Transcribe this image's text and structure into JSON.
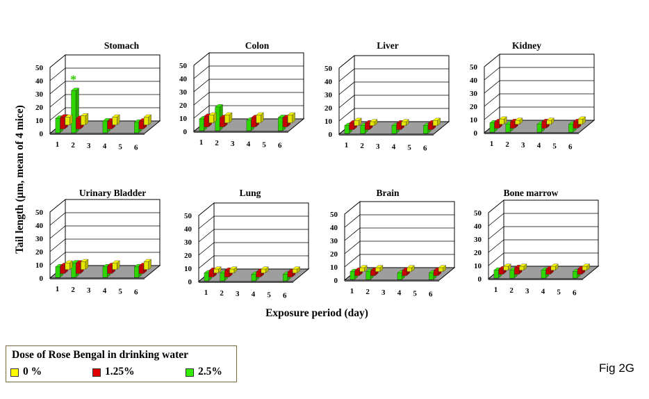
{
  "figure_label": "Fig 2G",
  "colors": {
    "dose_0": "#ffff00",
    "dose_125": "#e00000",
    "dose_25": "#33ee00",
    "floor": "#9e9e9e",
    "significance": "#33cc00"
  },
  "legend": {
    "title": "Dose of Rose Bengal in drinking water",
    "items": [
      {
        "label": "0 %",
        "color": "#ffff00"
      },
      {
        "label": "1.25%",
        "color": "#e00000"
      },
      {
        "label": "2.5%",
        "color": "#33ee00"
      }
    ]
  },
  "chart_data": {
    "type": "bar",
    "ylabel": "Tail length (µm, mean of 4 mice)",
    "xlabel": "Exposure period (day)",
    "categories": [
      "1",
      "2",
      "3",
      "4",
      "5",
      "6"
    ],
    "yticks": [
      "0",
      "10",
      "20",
      "30",
      "40",
      "50"
    ],
    "ylim": [
      0,
      50
    ],
    "grid": true,
    "legend_position": "bottom-left",
    "series_names": [
      "0 %",
      "1.25%",
      "2.5%"
    ],
    "panels": [
      {
        "title": "Stomach",
        "values": {
          "1": [
            6,
            9,
            11
          ],
          "2": [
            7,
            8,
            32
          ],
          "4": [
            6,
            6,
            9
          ],
          "6": [
            6,
            6,
            8
          ]
        },
        "annotation": {
          "text": "*",
          "day": "2",
          "series": 2
        }
      },
      {
        "title": "Colon",
        "values": {
          "1": [
            6,
            8,
            9
          ],
          "2": [
            6,
            7,
            18
          ],
          "4": [
            6,
            7,
            8
          ],
          "6": [
            6,
            7,
            10
          ]
        }
      },
      {
        "title": "Liver",
        "values": {
          "1": [
            4,
            5,
            6
          ],
          "2": [
            3,
            5,
            6
          ],
          "4": [
            3,
            5,
            6
          ],
          "6": [
            4,
            5,
            6
          ]
        }
      },
      {
        "title": "Kidney",
        "values": {
          "1": [
            4,
            5,
            7
          ],
          "2": [
            3,
            5,
            6
          ],
          "4": [
            3,
            5,
            6
          ],
          "6": [
            4,
            5,
            6
          ]
        }
      },
      {
        "title": "Urinary Bladder",
        "values": {
          "1": [
            5,
            6,
            8
          ],
          "2": [
            6,
            8,
            11
          ],
          "4": [
            5,
            6,
            8
          ],
          "6": [
            6,
            6,
            8
          ]
        }
      },
      {
        "title": "Lung",
        "values": {
          "1": [
            3,
            5,
            6
          ],
          "2": [
            3,
            5,
            6
          ],
          "4": [
            3,
            4,
            5
          ],
          "6": [
            3,
            4,
            5
          ]
        }
      },
      {
        "title": "Brain",
        "values": {
          "1": [
            3,
            4,
            6
          ],
          "2": [
            3,
            4,
            6
          ],
          "4": [
            3,
            4,
            5
          ],
          "6": [
            3,
            4,
            5
          ]
        }
      },
      {
        "title": "Bone marrow",
        "values": {
          "1": [
            3,
            4,
            6
          ],
          "2": [
            3,
            5,
            6
          ],
          "4": [
            3,
            4,
            6
          ],
          "6": [
            3,
            4,
            5
          ]
        }
      }
    ]
  }
}
